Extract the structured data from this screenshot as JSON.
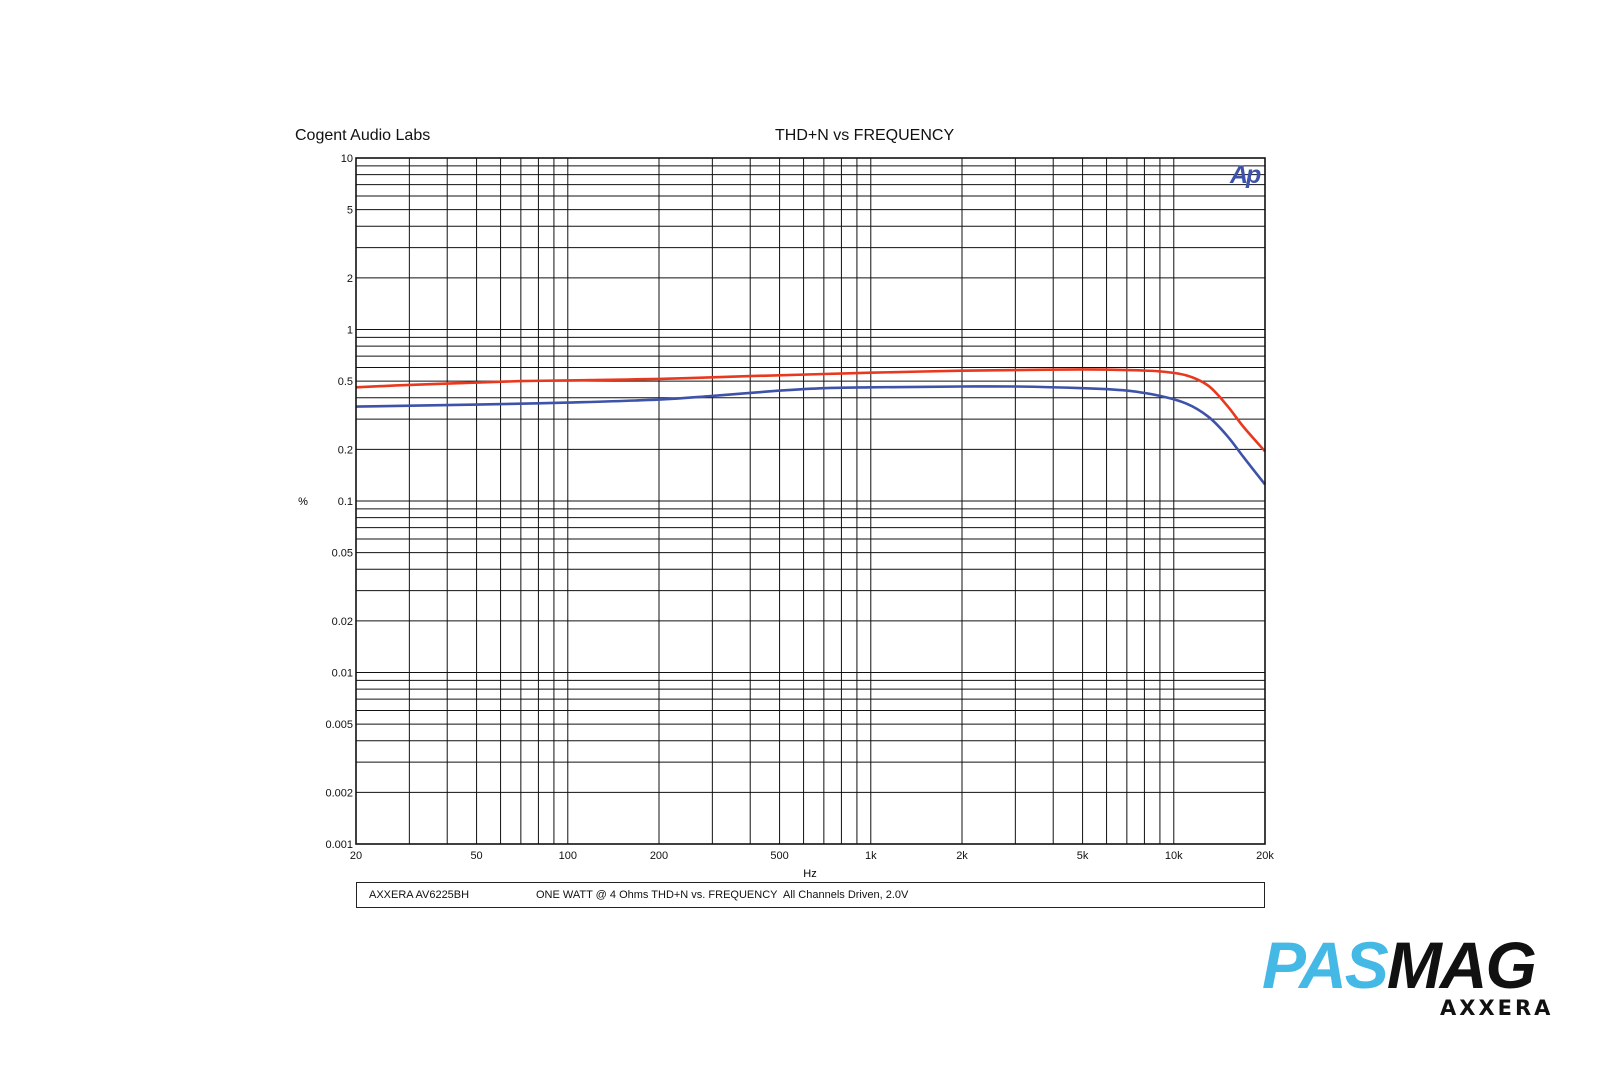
{
  "header": {
    "lab": "Cogent Audio Labs",
    "title": "THD+N vs FREQUENCY"
  },
  "logo_text": "Ap",
  "caption": {
    "model": "AXXERA  AV6225BH",
    "condition": "ONE WATT @ 4 Ohms   THD+N vs. FREQUENCY",
    "drive": "All Channels Driven, 2.0V"
  },
  "branding": {
    "pas": "PAS",
    "mag": "MAG",
    "sub": "AXXERA"
  },
  "colors": {
    "red_series": "#e8391f",
    "blue_series": "#3d52a8",
    "grid": "#111111",
    "pas": "#45b9e6",
    "logo": "#3d52a8"
  },
  "chart_data": {
    "type": "line",
    "title": "THD+N vs FREQUENCY",
    "xlabel": "Hz",
    "ylabel": "%",
    "xscale": "log",
    "yscale": "log",
    "xlim": [
      20,
      20000
    ],
    "ylim": [
      0.001,
      10
    ],
    "grid": true,
    "x_ticks": [
      {
        "value": 20,
        "label": "20"
      },
      {
        "value": 50,
        "label": "50"
      },
      {
        "value": 100,
        "label": "100"
      },
      {
        "value": 200,
        "label": "200"
      },
      {
        "value": 500,
        "label": "500"
      },
      {
        "value": 1000,
        "label": "1k"
      },
      {
        "value": 2000,
        "label": "2k"
      },
      {
        "value": 5000,
        "label": "5k"
      },
      {
        "value": 10000,
        "label": "10k"
      },
      {
        "value": 20000,
        "label": "20k"
      }
    ],
    "y_ticks": [
      {
        "value": 10,
        "label": "10"
      },
      {
        "value": 5,
        "label": "5"
      },
      {
        "value": 2,
        "label": "2"
      },
      {
        "value": 1,
        "label": "1"
      },
      {
        "value": 0.5,
        "label": "0.5"
      },
      {
        "value": 0.2,
        "label": "0.2"
      },
      {
        "value": 0.1,
        "label": "0.1"
      },
      {
        "value": 0.05,
        "label": "0.05"
      },
      {
        "value": 0.02,
        "label": "0.02"
      },
      {
        "value": 0.01,
        "label": "0.01"
      },
      {
        "value": 0.005,
        "label": "0.005"
      },
      {
        "value": 0.002,
        "label": "0.002"
      },
      {
        "value": 0.001,
        "label": "0.001"
      }
    ],
    "series": [
      {
        "color": "#e8391f",
        "x": [
          20,
          30,
          50,
          70,
          100,
          200,
          400,
          700,
          1000,
          2000,
          3000,
          5000,
          7000,
          9000,
          11000,
          13000,
          15000,
          17000,
          20000
        ],
        "y": [
          0.46,
          0.475,
          0.49,
          0.5,
          0.505,
          0.515,
          0.535,
          0.55,
          0.56,
          0.575,
          0.58,
          0.585,
          0.58,
          0.57,
          0.54,
          0.47,
          0.36,
          0.27,
          0.195
        ]
      },
      {
        "color": "#3d52a8",
        "x": [
          20,
          50,
          100,
          200,
          300,
          500,
          700,
          1000,
          2000,
          3000,
          5000,
          7000,
          9000,
          11000,
          13000,
          15000,
          17000,
          20000
        ],
        "y": [
          0.355,
          0.365,
          0.375,
          0.39,
          0.41,
          0.44,
          0.455,
          0.46,
          0.465,
          0.465,
          0.455,
          0.44,
          0.41,
          0.37,
          0.31,
          0.24,
          0.18,
          0.125
        ]
      }
    ]
  }
}
